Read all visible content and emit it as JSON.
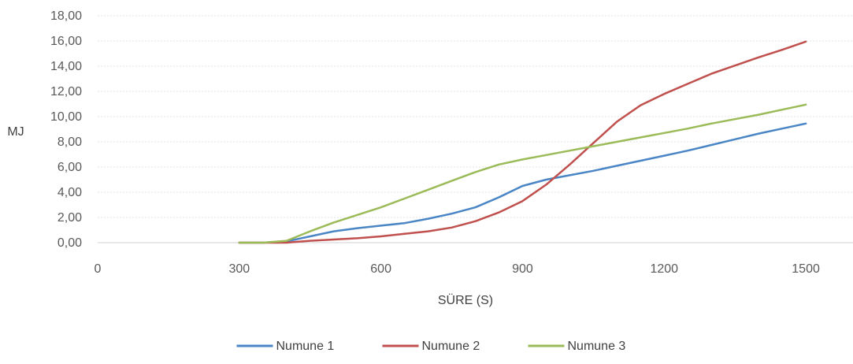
{
  "chart_data": {
    "type": "line",
    "title": "",
    "xlabel": "SÜRE (S)",
    "ylabel": "MJ",
    "xlim": [
      0,
      1600
    ],
    "ylim": [
      0,
      18
    ],
    "x_ticks": [
      "0",
      "300",
      "600",
      "900",
      "1200",
      "1500"
    ],
    "x_tick_values": [
      0,
      300,
      600,
      900,
      1200,
      1500
    ],
    "y_ticks": [
      "0,00",
      "2,00",
      "4,00",
      "6,00",
      "8,00",
      "10,00",
      "12,00",
      "14,00",
      "16,00",
      "18,00"
    ],
    "y_tick_values": [
      0,
      2,
      4,
      6,
      8,
      10,
      12,
      14,
      16,
      18
    ],
    "grid": true,
    "legend_position": "bottom",
    "series": [
      {
        "name": "Numune 1",
        "color": "#4a86c5",
        "points": [
          [
            300,
            0
          ],
          [
            350,
            0
          ],
          [
            400,
            0.1
          ],
          [
            450,
            0.5
          ],
          [
            500,
            0.9
          ],
          [
            550,
            1.15
          ],
          [
            600,
            1.35
          ],
          [
            650,
            1.55
          ],
          [
            700,
            1.9
          ],
          [
            750,
            2.3
          ],
          [
            800,
            2.8
          ],
          [
            850,
            3.6
          ],
          [
            900,
            4.5
          ],
          [
            950,
            5.0
          ],
          [
            1000,
            5.35
          ],
          [
            1050,
            5.7
          ],
          [
            1100,
            6.1
          ],
          [
            1150,
            6.5
          ],
          [
            1200,
            6.9
          ],
          [
            1250,
            7.3
          ],
          [
            1300,
            7.75
          ],
          [
            1350,
            8.2
          ],
          [
            1400,
            8.65
          ],
          [
            1450,
            9.05
          ],
          [
            1500,
            9.45
          ]
        ]
      },
      {
        "name": "Numune 2",
        "color": "#c0504d",
        "points": [
          [
            300,
            0
          ],
          [
            350,
            0
          ],
          [
            400,
            0
          ],
          [
            450,
            0.15
          ],
          [
            500,
            0.25
          ],
          [
            550,
            0.35
          ],
          [
            600,
            0.5
          ],
          [
            650,
            0.7
          ],
          [
            700,
            0.9
          ],
          [
            750,
            1.2
          ],
          [
            800,
            1.7
          ],
          [
            850,
            2.4
          ],
          [
            900,
            3.3
          ],
          [
            950,
            4.6
          ],
          [
            1000,
            6.2
          ],
          [
            1050,
            7.9
          ],
          [
            1100,
            9.6
          ],
          [
            1150,
            10.9
          ],
          [
            1200,
            11.8
          ],
          [
            1250,
            12.6
          ],
          [
            1300,
            13.4
          ],
          [
            1350,
            14.05
          ],
          [
            1400,
            14.7
          ],
          [
            1450,
            15.3
          ],
          [
            1500,
            15.95
          ]
        ]
      },
      {
        "name": "Numune 3",
        "color": "#9bbb59",
        "points": [
          [
            300,
            0
          ],
          [
            350,
            0
          ],
          [
            400,
            0.15
          ],
          [
            450,
            0.9
          ],
          [
            500,
            1.6
          ],
          [
            550,
            2.2
          ],
          [
            600,
            2.8
          ],
          [
            650,
            3.5
          ],
          [
            700,
            4.2
          ],
          [
            750,
            4.9
          ],
          [
            800,
            5.6
          ],
          [
            850,
            6.2
          ],
          [
            900,
            6.6
          ],
          [
            950,
            6.95
          ],
          [
            1000,
            7.3
          ],
          [
            1050,
            7.65
          ],
          [
            1100,
            8.0
          ],
          [
            1150,
            8.35
          ],
          [
            1200,
            8.7
          ],
          [
            1250,
            9.05
          ],
          [
            1300,
            9.45
          ],
          [
            1350,
            9.8
          ],
          [
            1400,
            10.15
          ],
          [
            1450,
            10.55
          ],
          [
            1500,
            10.95
          ]
        ]
      }
    ]
  }
}
